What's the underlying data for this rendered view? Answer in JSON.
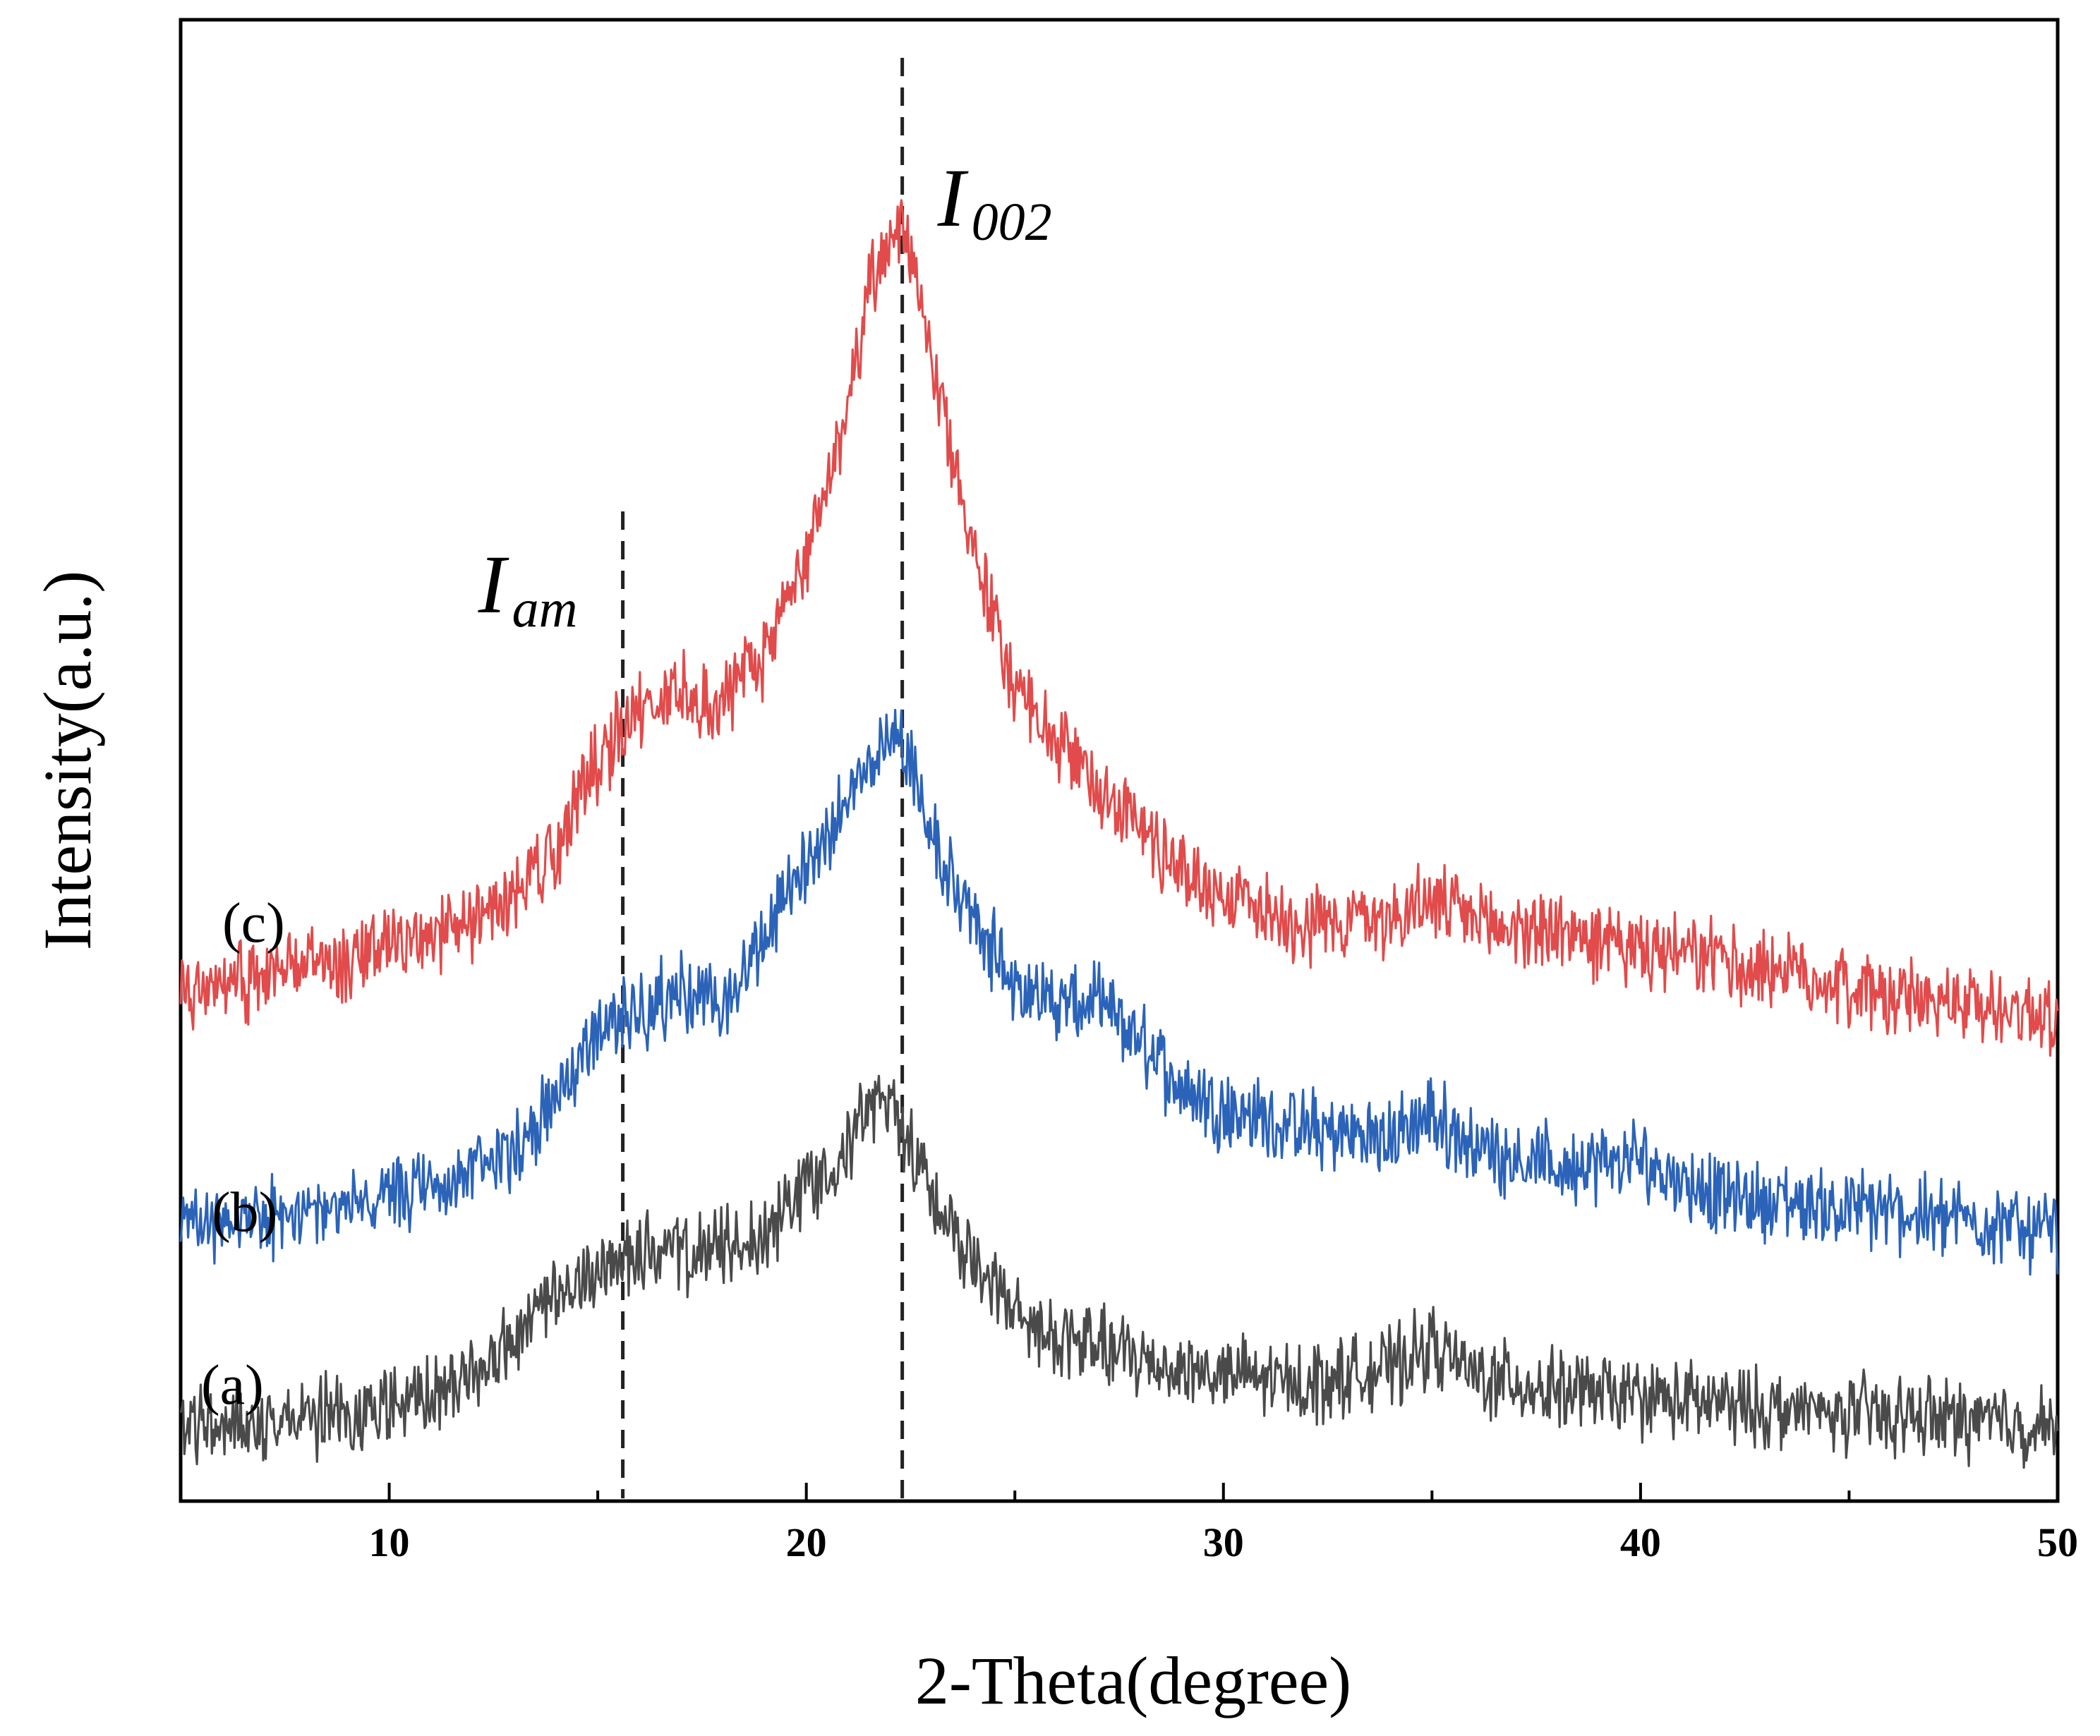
{
  "chart_data": {
    "type": "line",
    "title": "",
    "xlabel": "2-Theta(degree)",
    "ylabel": "Intensity(a.u.)",
    "xlim": [
      5,
      50
    ],
    "ylim": [
      0,
      100
    ],
    "y_ticks_shown": false,
    "x_ticks": [
      10,
      20,
      30,
      40,
      50
    ],
    "reference_lines": [
      {
        "x": 15.6,
        "label": "I",
        "subscript": "am",
        "style": "dashed"
      },
      {
        "x": 22.3,
        "label": "I",
        "subscript": "002",
        "style": "dashed"
      }
    ],
    "series": [
      {
        "name": "(a)",
        "color": "#4a4a4a",
        "x": [
          5,
          6,
          7,
          8,
          9,
          10,
          11,
          12,
          13,
          14,
          15,
          16,
          17,
          18,
          19,
          20,
          21,
          21.5,
          22,
          22.3,
          22.6,
          23,
          24,
          25,
          26,
          27,
          28,
          29,
          30,
          32,
          34,
          35,
          36,
          38,
          40,
          42,
          44,
          46,
          48,
          50
        ],
        "values": [
          5,
          5.3,
          5.5,
          5.5,
          5.8,
          6.3,
          7,
          8.5,
          11,
          13.5,
          15.5,
          17,
          16.5,
          17,
          18,
          21.5,
          24,
          26.5,
          27,
          25.5,
          23.5,
          21,
          16,
          12.5,
          11,
          10.5,
          9.5,
          9,
          8.5,
          8,
          9,
          10.5,
          8.5,
          7.5,
          7,
          6.5,
          6,
          5.8,
          5.5,
          5
        ]
      },
      {
        "name": "(b)",
        "color": "#2b63b8",
        "x": [
          5,
          6,
          7,
          8,
          9,
          10,
          11,
          12,
          13,
          14,
          15,
          16,
          17,
          18,
          19,
          20,
          21,
          21.5,
          22,
          22.3,
          22.6,
          23,
          24,
          25,
          26,
          27,
          28,
          29,
          30,
          32,
          34,
          35,
          36,
          38,
          40,
          42,
          44,
          46,
          48,
          50
        ],
        "values": [
          18.5,
          19,
          19,
          19.5,
          20,
          20.5,
          21,
          22,
          24,
          27,
          32,
          33,
          34.5,
          33,
          38,
          43,
          47.5,
          50,
          51.5,
          52,
          49,
          45,
          39,
          35,
          33.5,
          33.5,
          31,
          28,
          26.5,
          25,
          24.5,
          26,
          24,
          22.5,
          23,
          20.5,
          20,
          19.5,
          19,
          18
        ]
      },
      {
        "name": "(c)",
        "color": "#e14b4b",
        "x": [
          5,
          6,
          7,
          8,
          9,
          10,
          11,
          12,
          13,
          14,
          15,
          16,
          17,
          18,
          19,
          20,
          21,
          21.5,
          22,
          22.3,
          22.6,
          23,
          24,
          25,
          26,
          27,
          28,
          29,
          30,
          32,
          34,
          35,
          36,
          38,
          40,
          42,
          44,
          46,
          48,
          50
        ],
        "values": [
          34.5,
          35,
          35.5,
          36,
          36.5,
          37.5,
          38,
          39,
          41,
          44,
          50,
          53.5,
          54.5,
          54,
          57,
          64,
          73.5,
          81.5,
          85,
          87,
          84,
          77.5,
          64,
          55,
          51,
          48.5,
          45.5,
          42.5,
          41,
          39,
          39.5,
          40.5,
          39,
          38.5,
          37,
          36.5,
          35.5,
          34,
          33.5,
          33
        ]
      }
    ]
  }
}
